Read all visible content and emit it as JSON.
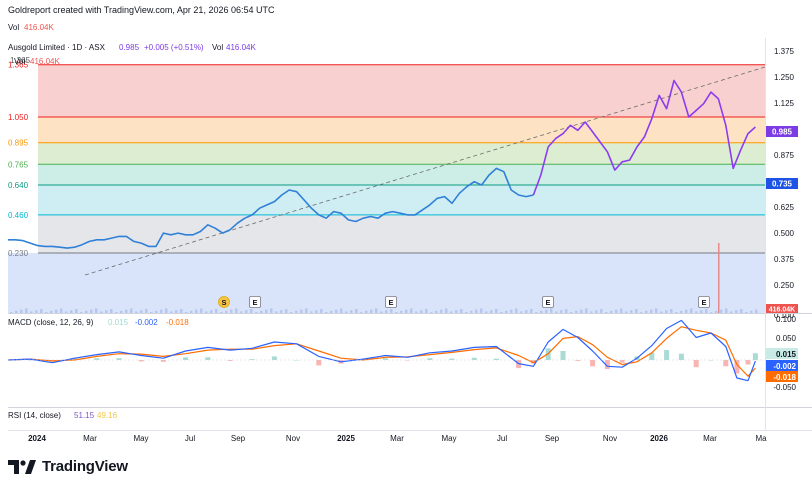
{
  "header": {
    "credit": "Goldreport created with TradingView.com, Apr 21, 2026 06:54 UTC",
    "vol_label": "Vol",
    "vol_value": "416.04K"
  },
  "legend": {
    "symbol": "Ausgold Limited · 1D · ASX",
    "price": "0.985",
    "change": "+0.005 (+0.51%)",
    "vol_label": "Vol",
    "vol_value": "416.04K",
    "ghost_price": "1.365",
    "ghost_vol": "416.04K"
  },
  "macd_legend": {
    "title": "MACD (close, 12, 26, 9)",
    "hist": "0.015",
    "macd": "-0.002",
    "signal": "-0.018"
  },
  "rsi_legend": {
    "title": "RSI (14, close)",
    "rsi": "51.15",
    "ma": "49.16"
  },
  "brand": {
    "name": "TradingView"
  },
  "colors": {
    "price_blue": "#2f80d8",
    "price_purple": "#8c3cf0",
    "macd_line": "#2962ff",
    "signal_line": "#ff6d00",
    "hist_up": "#26a69a",
    "hist_down": "#ef5350",
    "fib_red": "#ef1c1c",
    "fib_orange": "#ff9800",
    "fib_green": "#4caf50",
    "fib_teal": "#089981",
    "fib_cyan": "#00bcd4",
    "fib_gray": "#787b86"
  },
  "chart_data": [
    {
      "type": "line",
      "x_ticks": [
        "2024",
        "Mar",
        "May",
        "Jul",
        "Sep",
        "Nov",
        "2025",
        "Mar",
        "May",
        "Jul",
        "Sep",
        "Nov",
        "2026",
        "Mar",
        "Ma"
      ],
      "y_ticks": [
        "1.375",
        "1.250",
        "1.125",
        "1.000",
        "0.875",
        "0.750",
        "0.625",
        "0.500",
        "0.375",
        "0.250",
        "0.100"
      ],
      "ylim": [
        0.2,
        1.42
      ],
      "price_label": "0.985",
      "level_label": "0.735",
      "fib_levels": [
        {
          "label": "1.365",
          "value": 1.365
        },
        {
          "label": "1.050",
          "value": 1.05
        },
        {
          "label": "0.895",
          "value": 0.895
        },
        {
          "label": "0.765",
          "value": 0.765
        },
        {
          "label": "0.640",
          "value": 0.64
        },
        {
          "label": "0.460",
          "value": 0.46
        },
        {
          "label": "0.230",
          "value": 0.23
        }
      ],
      "event_markers": [
        "S",
        "E",
        "E",
        "E",
        "E"
      ],
      "volume_label": "416.04K",
      "series": [
        {
          "values": [
            [
              0.0,
              0.31
            ],
            [
              0.01,
              0.31
            ],
            [
              0.02,
              0.305
            ],
            [
              0.03,
              0.29
            ],
            [
              0.04,
              0.275
            ],
            [
              0.05,
              0.27
            ],
            [
              0.06,
              0.27
            ],
            [
              0.07,
              0.265
            ],
            [
              0.08,
              0.26
            ],
            [
              0.09,
              0.265
            ],
            [
              0.1,
              0.28
            ],
            [
              0.11,
              0.3
            ],
            [
              0.12,
              0.31
            ],
            [
              0.13,
              0.31
            ],
            [
              0.14,
              0.32
            ],
            [
              0.15,
              0.33
            ],
            [
              0.16,
              0.33
            ],
            [
              0.17,
              0.3
            ],
            [
              0.18,
              0.29
            ],
            [
              0.19,
              0.27
            ],
            [
              0.2,
              0.27
            ],
            [
              0.21,
              0.35
            ],
            [
              0.22,
              0.34
            ],
            [
              0.23,
              0.35
            ],
            [
              0.24,
              0.34
            ],
            [
              0.25,
              0.34
            ],
            [
              0.26,
              0.36
            ],
            [
              0.27,
              0.4
            ],
            [
              0.28,
              0.38
            ],
            [
              0.29,
              0.35
            ],
            [
              0.3,
              0.37
            ],
            [
              0.31,
              0.41
            ],
            [
              0.32,
              0.44
            ],
            [
              0.33,
              0.46
            ],
            [
              0.34,
              0.5
            ],
            [
              0.35,
              0.52
            ],
            [
              0.36,
              0.54
            ],
            [
              0.37,
              0.58
            ],
            [
              0.38,
              0.61
            ],
            [
              0.39,
              0.6
            ],
            [
              0.4,
              0.55
            ],
            [
              0.41,
              0.5
            ],
            [
              0.42,
              0.46
            ],
            [
              0.43,
              0.44
            ],
            [
              0.44,
              0.48
            ],
            [
              0.45,
              0.47
            ],
            [
              0.46,
              0.43
            ],
            [
              0.47,
              0.42
            ],
            [
              0.48,
              0.44
            ],
            [
              0.49,
              0.45
            ],
            [
              0.5,
              0.44
            ],
            [
              0.51,
              0.47
            ],
            [
              0.52,
              0.48
            ],
            [
              0.53,
              0.47
            ],
            [
              0.54,
              0.46
            ],
            [
              0.55,
              0.46
            ],
            [
              0.56,
              0.49
            ],
            [
              0.57,
              0.52
            ],
            [
              0.58,
              0.56
            ],
            [
              0.59,
              0.57
            ],
            [
              0.6,
              0.53
            ],
            [
              0.61,
              0.59
            ],
            [
              0.62,
              0.63
            ],
            [
              0.63,
              0.66
            ],
            [
              0.64,
              0.64
            ],
            [
              0.65,
              0.7
            ],
            [
              0.66,
              0.74
            ],
            [
              0.67,
              0.72
            ],
            [
              0.68,
              0.61
            ],
            [
              0.69,
              0.58
            ],
            [
              0.7,
              0.57
            ],
            [
              0.71,
              0.58
            ]
          ]
        },
        {
          "values": [
            [
              0.71,
              0.58
            ],
            [
              0.72,
              0.7
            ],
            [
              0.73,
              0.87
            ],
            [
              0.74,
              0.92
            ],
            [
              0.75,
              0.95
            ],
            [
              0.76,
              1.0
            ],
            [
              0.77,
              0.97
            ],
            [
              0.78,
              1.02
            ],
            [
              0.79,
              0.96
            ],
            [
              0.8,
              0.9
            ],
            [
              0.81,
              0.84
            ],
            [
              0.82,
              0.73
            ],
            [
              0.83,
              0.78
            ],
            [
              0.84,
              0.79
            ],
            [
              0.85,
              0.87
            ],
            [
              0.86,
              0.93
            ],
            [
              0.87,
              1.04
            ],
            [
              0.88,
              1.18
            ],
            [
              0.89,
              1.1
            ],
            [
              0.9,
              1.27
            ],
            [
              0.91,
              1.2
            ],
            [
              0.92,
              1.05
            ],
            [
              0.93,
              1.09
            ],
            [
              0.94,
              1.13
            ],
            [
              0.95,
              1.2
            ],
            [
              0.96,
              1.16
            ],
            [
              0.97,
              1.0
            ],
            [
              0.98,
              0.74
            ],
            [
              0.99,
              0.85
            ],
            [
              1.0,
              0.95
            ],
            [
              1.01,
              0.99
            ]
          ]
        }
      ]
    },
    {
      "type": "line",
      "title": "MACD (close, 12, 26, 9)",
      "y_ticks": [
        "0.100",
        "0.050",
        "0.015",
        "-0.002",
        "-0.018",
        "-0.050"
      ],
      "ylim": [
        -0.07,
        0.1
      ],
      "series": [
        {
          "name": "macd",
          "values": [
            [
              0.0,
              0.0
            ],
            [
              0.03,
              0.002
            ],
            [
              0.06,
              -0.006
            ],
            [
              0.09,
              0.004
            ],
            [
              0.12,
              0.012
            ],
            [
              0.15,
              0.018
            ],
            [
              0.18,
              0.01
            ],
            [
              0.21,
              0.004
            ],
            [
              0.24,
              0.02
            ],
            [
              0.27,
              0.028
            ],
            [
              0.3,
              0.022
            ],
            [
              0.33,
              0.026
            ],
            [
              0.36,
              0.04
            ],
            [
              0.39,
              0.036
            ],
            [
              0.42,
              0.008
            ],
            [
              0.45,
              -0.004
            ],
            [
              0.48,
              0.002
            ],
            [
              0.51,
              0.01
            ],
            [
              0.54,
              0.006
            ],
            [
              0.57,
              0.016
            ],
            [
              0.6,
              0.02
            ],
            [
              0.63,
              0.028
            ],
            [
              0.66,
              0.03
            ],
            [
              0.69,
              -0.008
            ],
            [
              0.71,
              -0.014
            ],
            [
              0.73,
              0.04
            ],
            [
              0.75,
              0.068
            ],
            [
              0.77,
              0.05
            ],
            [
              0.79,
              0.02
            ],
            [
              0.81,
              -0.014
            ],
            [
              0.83,
              -0.016
            ],
            [
              0.85,
              0.004
            ],
            [
              0.87,
              0.032
            ],
            [
              0.89,
              0.07
            ],
            [
              0.91,
              0.088
            ],
            [
              0.93,
              0.05
            ],
            [
              0.95,
              0.06
            ],
            [
              0.97,
              0.03
            ],
            [
              0.985,
              -0.04
            ],
            [
              1.0,
              -0.046
            ],
            [
              1.01,
              -0.002
            ]
          ]
        },
        {
          "name": "signal",
          "values": [
            [
              0.0,
              0.0
            ],
            [
              0.03,
              0.002
            ],
            [
              0.06,
              -0.002
            ],
            [
              0.09,
              0.0
            ],
            [
              0.12,
              0.008
            ],
            [
              0.15,
              0.014
            ],
            [
              0.18,
              0.013
            ],
            [
              0.21,
              0.008
            ],
            [
              0.24,
              0.014
            ],
            [
              0.27,
              0.022
            ],
            [
              0.3,
              0.024
            ],
            [
              0.33,
              0.024
            ],
            [
              0.36,
              0.032
            ],
            [
              0.39,
              0.036
            ],
            [
              0.42,
              0.02
            ],
            [
              0.45,
              0.004
            ],
            [
              0.48,
              0.0
            ],
            [
              0.51,
              0.006
            ],
            [
              0.54,
              0.007
            ],
            [
              0.57,
              0.012
            ],
            [
              0.6,
              0.017
            ],
            [
              0.63,
              0.023
            ],
            [
              0.66,
              0.027
            ],
            [
              0.69,
              0.01
            ],
            [
              0.71,
              -0.006
            ],
            [
              0.73,
              0.014
            ],
            [
              0.75,
              0.048
            ],
            [
              0.77,
              0.052
            ],
            [
              0.79,
              0.034
            ],
            [
              0.81,
              0.006
            ],
            [
              0.83,
              -0.01
            ],
            [
              0.85,
              -0.004
            ],
            [
              0.87,
              0.016
            ],
            [
              0.89,
              0.048
            ],
            [
              0.91,
              0.074
            ],
            [
              0.93,
              0.066
            ],
            [
              0.95,
              0.06
            ],
            [
              0.97,
              0.044
            ],
            [
              0.985,
              -0.01
            ],
            [
              1.0,
              -0.036
            ],
            [
              1.01,
              -0.018
            ]
          ]
        },
        {
          "name": "histogram",
          "values": [
            [
              0.0,
              0.0
            ],
            [
              0.03,
              0.0
            ],
            [
              0.06,
              -0.004
            ],
            [
              0.09,
              0.004
            ],
            [
              0.12,
              0.004
            ],
            [
              0.15,
              0.004
            ],
            [
              0.18,
              -0.003
            ],
            [
              0.21,
              -0.004
            ],
            [
              0.24,
              0.006
            ],
            [
              0.27,
              0.006
            ],
            [
              0.3,
              -0.002
            ],
            [
              0.33,
              0.002
            ],
            [
              0.36,
              0.008
            ],
            [
              0.39,
              0.0
            ],
            [
              0.42,
              -0.012
            ],
            [
              0.45,
              -0.008
            ],
            [
              0.48,
              0.002
            ],
            [
              0.51,
              0.004
            ],
            [
              0.54,
              -0.001
            ],
            [
              0.57,
              0.004
            ],
            [
              0.6,
              0.003
            ],
            [
              0.63,
              0.005
            ],
            [
              0.66,
              0.003
            ],
            [
              0.69,
              -0.018
            ],
            [
              0.71,
              -0.008
            ],
            [
              0.73,
              0.026
            ],
            [
              0.75,
              0.02
            ],
            [
              0.77,
              -0.002
            ],
            [
              0.79,
              -0.014
            ],
            [
              0.81,
              -0.02
            ],
            [
              0.83,
              -0.006
            ],
            [
              0.85,
              0.008
            ],
            [
              0.87,
              0.016
            ],
            [
              0.89,
              0.022
            ],
            [
              0.91,
              0.014
            ],
            [
              0.93,
              -0.016
            ],
            [
              0.95,
              0.0
            ],
            [
              0.97,
              -0.014
            ],
            [
              0.985,
              -0.03
            ],
            [
              1.0,
              -0.01
            ],
            [
              1.01,
              0.015
            ]
          ]
        }
      ]
    }
  ]
}
